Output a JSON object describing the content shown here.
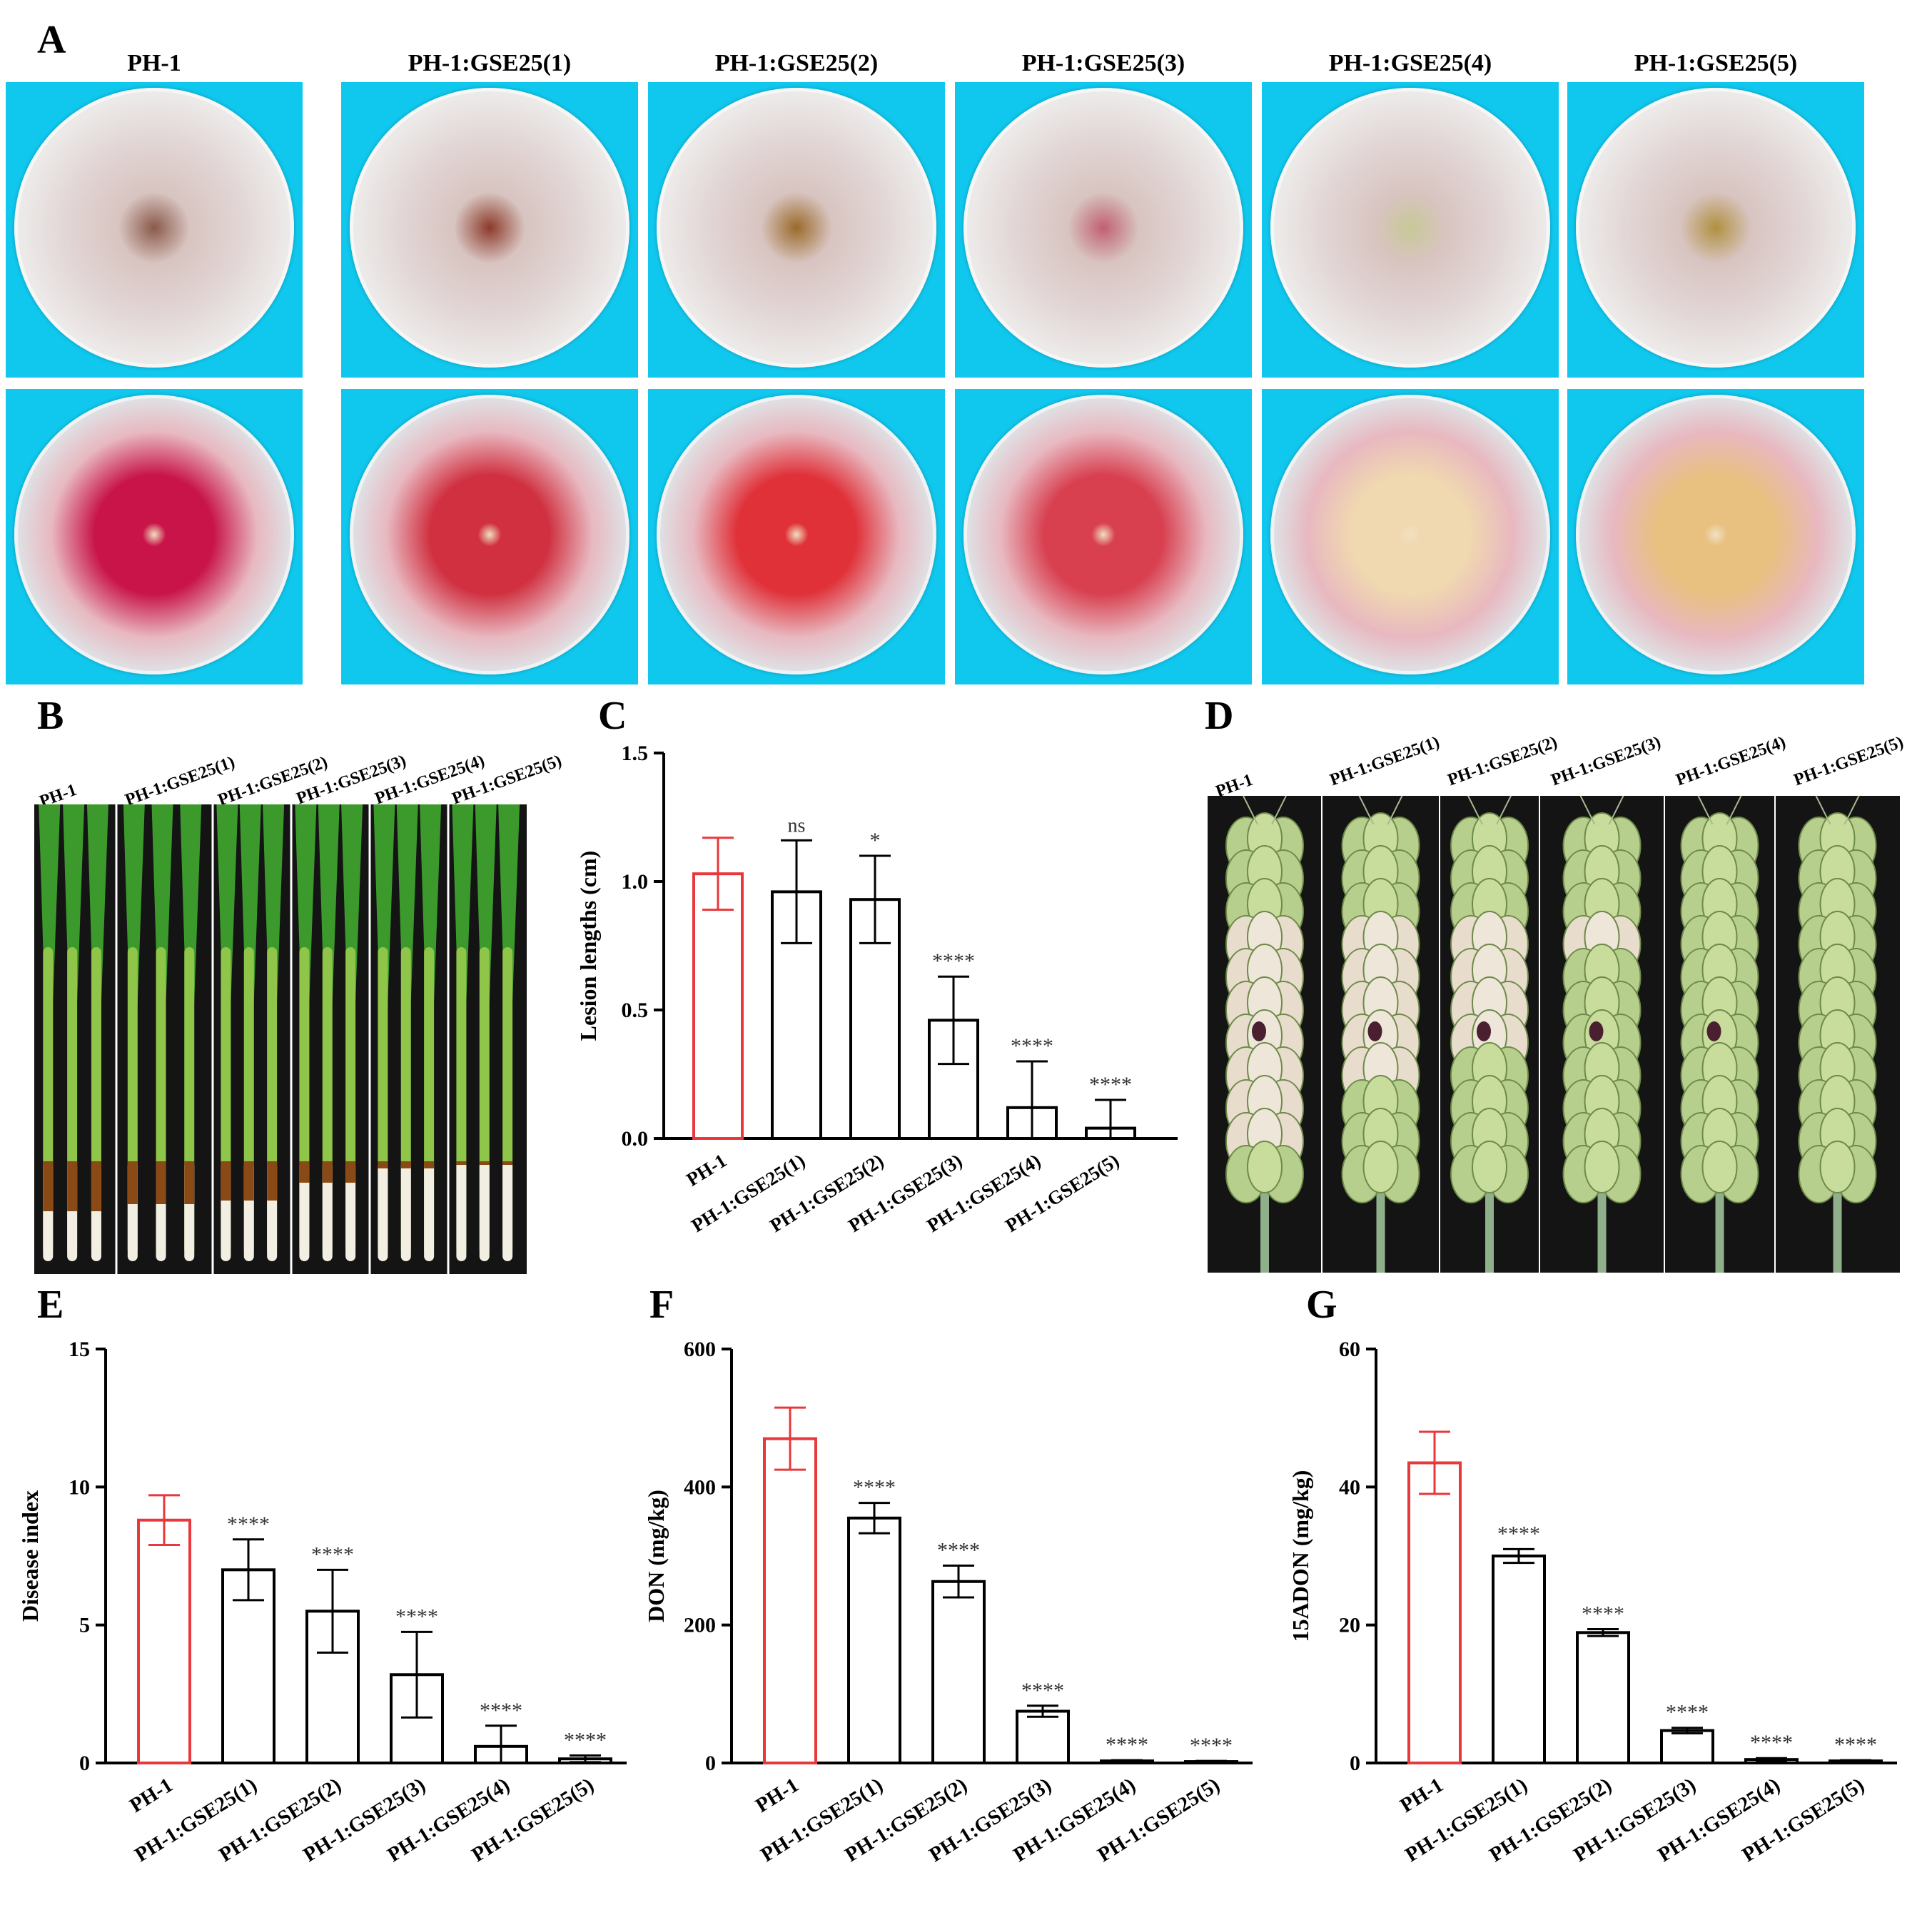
{
  "panels": {
    "A": "A",
    "B": "B",
    "C": "C",
    "D": "D",
    "E": "E",
    "F": "F",
    "G": "G"
  },
  "strains": [
    "PH-1",
    "PH-1:GSE25(1)",
    "PH-1:GSE25(2)",
    "PH-1:GSE25(3)",
    "PH-1:GSE25(4)",
    "PH-1:GSE25(5)"
  ],
  "colors": {
    "plate_background": "#10c8ee",
    "control_bar": "#e8383b",
    "other_bars": "#000000",
    "photo_background": "#141414"
  },
  "plates": {
    "top_row_rings": [
      "#8a5a4a",
      "#8c3a2a",
      "#9a6a2a",
      "#c06070",
      "#c8c898",
      "#b09040"
    ],
    "bottom_row_center": [
      "#c81448",
      "#d03040",
      "#e03038",
      "#d84050",
      "#f0d8b0",
      "#e8c080"
    ]
  },
  "chart_data": [
    {
      "id": "C",
      "type": "bar",
      "categories": [
        "PH-1",
        "PH-1:GSE25(1)",
        "PH-1:GSE25(2)",
        "PH-1:GSE25(3)",
        "PH-1:GSE25(4)",
        "PH-1:GSE25(5)"
      ],
      "values": [
        1.03,
        0.96,
        0.93,
        0.46,
        0.12,
        0.04
      ],
      "errors": [
        0.14,
        0.2,
        0.17,
        0.17,
        0.18,
        0.11
      ],
      "significance": [
        "",
        "ns",
        "*",
        "****",
        "****",
        "****"
      ],
      "ylabel": "Lesion lengths (cm)",
      "ylim": [
        0,
        1.5
      ],
      "yticks": [
        "0.0",
        "0.5",
        "1.0",
        "1.5"
      ],
      "tick_values": [
        0,
        0.5,
        1.0,
        1.5
      ]
    },
    {
      "id": "E",
      "type": "bar",
      "categories": [
        "PH-1",
        "PH-1:GSE25(1)",
        "PH-1:GSE25(2)",
        "PH-1:GSE25(3)",
        "PH-1:GSE25(4)",
        "PH-1:GSE25(5)"
      ],
      "values": [
        8.8,
        7.0,
        5.5,
        3.2,
        0.6,
        0.15
      ],
      "errors": [
        0.9,
        1.1,
        1.5,
        1.55,
        0.75,
        0.12
      ],
      "significance": [
        "",
        "****",
        "****",
        "****",
        "****",
        "****"
      ],
      "ylabel": "Disease index",
      "ylim": [
        0,
        15
      ],
      "yticks": [
        "0",
        "5",
        "10",
        "15"
      ],
      "tick_values": [
        0,
        5,
        10,
        15
      ]
    },
    {
      "id": "F",
      "type": "bar",
      "categories": [
        "PH-1",
        "PH-1:GSE25(1)",
        "PH-1:GSE25(2)",
        "PH-1:GSE25(3)",
        "PH-1:GSE25(4)",
        "PH-1:GSE25(5)"
      ],
      "values": [
        470,
        355,
        263,
        75,
        3,
        2
      ],
      "errors": [
        45,
        22,
        23,
        8,
        1,
        1
      ],
      "significance": [
        "",
        "****",
        "****",
        "****",
        "****",
        "****"
      ],
      "ylabel": "DON (mg/kg)",
      "ylim": [
        0,
        600
      ],
      "yticks": [
        "0",
        "200",
        "400",
        "600"
      ],
      "tick_values": [
        0,
        200,
        400,
        600
      ]
    },
    {
      "id": "G",
      "type": "bar",
      "categories": [
        "PH-1",
        "PH-1:GSE25(1)",
        "PH-1:GSE25(2)",
        "PH-1:GSE25(3)",
        "PH-1:GSE25(4)",
        "PH-1:GSE25(5)"
      ],
      "values": [
        43.5,
        30.0,
        18.9,
        4.7,
        0.5,
        0.3
      ],
      "errors": [
        4.5,
        1.0,
        0.5,
        0.4,
        0.2,
        0.1
      ],
      "significance": [
        "",
        "****",
        "****",
        "****",
        "****",
        "****"
      ],
      "ylabel": "15ADON (mg/kg)",
      "ylim": [
        0,
        60
      ],
      "yticks": [
        "0",
        "20",
        "40",
        "60"
      ],
      "tick_values": [
        0,
        20,
        40,
        60
      ]
    }
  ]
}
